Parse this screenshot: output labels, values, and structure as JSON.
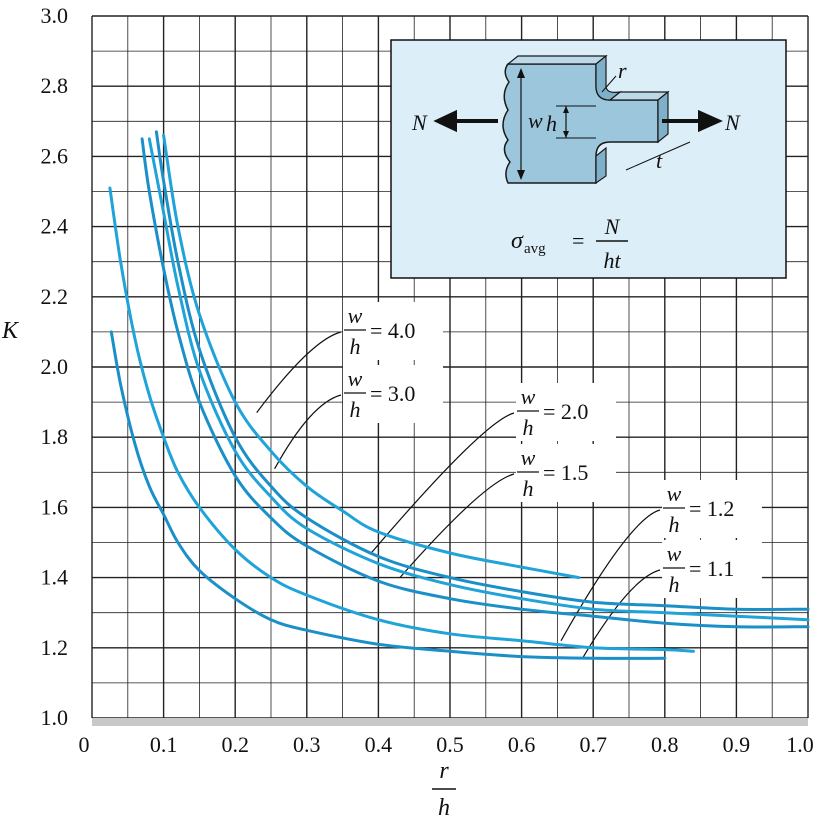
{
  "chart_data": {
    "type": "line",
    "xlabel": {
      "num": "r",
      "den": "h"
    },
    "ylabel": "K",
    "xlim": [
      0,
      1.0
    ],
    "ylim": [
      1.0,
      3.0
    ],
    "x_ticks": [
      "0",
      "0.1",
      "0.2",
      "0.3",
      "0.4",
      "0.5",
      "0.6",
      "0.7",
      "0.8",
      "0.9",
      "1.0"
    ],
    "y_ticks": [
      "1.0",
      "1.2",
      "1.4",
      "1.6",
      "1.8",
      "2.0",
      "2.2",
      "2.4",
      "2.6",
      "2.8",
      "3.0"
    ],
    "grid": true,
    "colors": {
      "curve": "#1fa3d8",
      "curve_dark": "#1a8fc8",
      "inset_bg": "#dceef8",
      "part": "#9cc6dc",
      "grid": "#222222",
      "axis_band": "#c8c8c8"
    },
    "series": [
      {
        "label": {
          "num": "w",
          "den": "h",
          "value": "= 4.0"
        },
        "x": [
          0.1,
          0.12,
          0.15,
          0.2,
          0.25,
          0.3,
          0.35,
          0.4,
          0.5,
          0.6,
          0.68
        ],
        "y": [
          2.66,
          2.4,
          2.15,
          1.9,
          1.76,
          1.66,
          1.59,
          1.53,
          1.47,
          1.43,
          1.4
        ]
      },
      {
        "label": {
          "num": "w",
          "den": "h",
          "value": "= 3.0"
        },
        "x": [
          0.09,
          0.1,
          0.12,
          0.15,
          0.2,
          0.25,
          0.3,
          0.4,
          0.5,
          0.6,
          0.7,
          0.8,
          0.9,
          1.0
        ],
        "y": [
          2.67,
          2.53,
          2.3,
          2.05,
          1.8,
          1.66,
          1.57,
          1.46,
          1.4,
          1.36,
          1.33,
          1.32,
          1.31,
          1.31
        ]
      },
      {
        "label": {
          "num": "w",
          "den": "h",
          "value": "= 2.0"
        },
        "x": [
          0.08,
          0.1,
          0.12,
          0.15,
          0.2,
          0.25,
          0.3,
          0.4,
          0.5,
          0.6,
          0.7,
          0.8,
          0.9,
          1.0
        ],
        "y": [
          2.65,
          2.44,
          2.23,
          1.99,
          1.76,
          1.63,
          1.54,
          1.44,
          1.38,
          1.34,
          1.31,
          1.3,
          1.29,
          1.28
        ]
      },
      {
        "label": {
          "num": "w",
          "den": "h",
          "value": "= 1.5"
        },
        "x": [
          0.07,
          0.08,
          0.1,
          0.12,
          0.15,
          0.2,
          0.25,
          0.3,
          0.4,
          0.5,
          0.6,
          0.7,
          0.8,
          0.9,
          1.0
        ],
        "y": [
          2.65,
          2.5,
          2.28,
          2.1,
          1.9,
          1.69,
          1.57,
          1.49,
          1.39,
          1.34,
          1.31,
          1.29,
          1.27,
          1.26,
          1.26
        ]
      },
      {
        "label": {
          "num": "w",
          "den": "h",
          "value": "= 1.2"
        },
        "x": [
          0.025,
          0.04,
          0.06,
          0.08,
          0.1,
          0.12,
          0.15,
          0.2,
          0.25,
          0.3,
          0.4,
          0.5,
          0.6,
          0.7,
          0.8,
          0.84
        ],
        "y": [
          2.51,
          2.3,
          2.08,
          1.92,
          1.8,
          1.7,
          1.6,
          1.48,
          1.4,
          1.35,
          1.28,
          1.24,
          1.22,
          1.2,
          1.195,
          1.19
        ]
      },
      {
        "label": {
          "num": "w",
          "den": "h",
          "value": "= 1.1"
        },
        "x": [
          0.027,
          0.04,
          0.06,
          0.08,
          0.1,
          0.12,
          0.15,
          0.2,
          0.25,
          0.3,
          0.4,
          0.5,
          0.6,
          0.7,
          0.8
        ],
        "y": [
          2.1,
          1.95,
          1.78,
          1.66,
          1.58,
          1.5,
          1.42,
          1.34,
          1.28,
          1.25,
          1.21,
          1.19,
          1.175,
          1.17,
          1.17
        ]
      }
    ],
    "annotation_leaders": [
      {
        "tip": [
          0.23,
          1.87
        ]
      },
      {
        "tip": [
          0.255,
          1.71
        ]
      },
      {
        "tip": [
          0.39,
          1.47
        ]
      },
      {
        "tip": [
          0.43,
          1.4
        ]
      },
      {
        "tip": [
          0.655,
          1.22
        ]
      },
      {
        "tip": [
          0.685,
          1.17
        ]
      }
    ],
    "inset": {
      "formula_sigma": "σ",
      "formula_sub": "avg",
      "formula_eq": "=",
      "formula_num": "N",
      "formula_den": "ht",
      "load_left": "N",
      "load_right": "N",
      "dim_w": "w",
      "dim_h": "h",
      "dim_r": "r",
      "dim_t": "t"
    }
  }
}
